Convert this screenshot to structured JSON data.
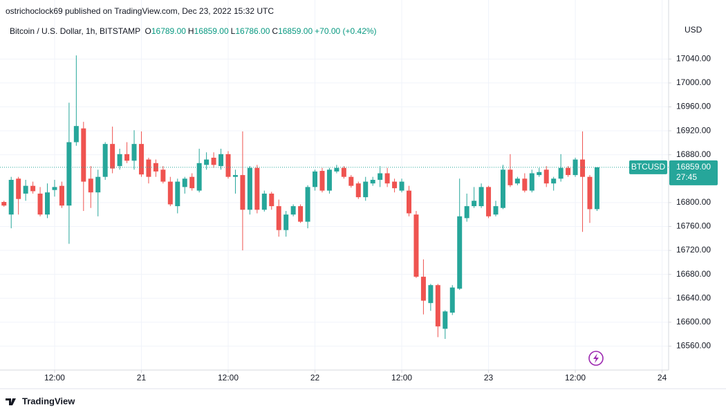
{
  "chart_data": {
    "type": "candlestick",
    "published": "ostrichoclock69 published on TradingView.com, Dec 23, 2022 15:32 UTC",
    "title": "Bitcoin / U.S. Dollar, 1h, BITSTAMP",
    "ohlc_legend": [
      {
        "label": "O",
        "value": "16789.00"
      },
      {
        "label": "H",
        "value": "16859.00"
      },
      {
        "label": "L",
        "value": "16786.00"
      },
      {
        "label": "C",
        "value": "16859.00"
      }
    ],
    "change": "+70.00 (+0.42%)",
    "currency": "USD",
    "symbol_label": "BTCUSD",
    "last_price_label": "16859.00",
    "countdown": "27:45",
    "brand": "TradingView",
    "up_color": "#26a69a",
    "down_color": "#ef5350",
    "grid": true,
    "categories": [
      null,
      null,
      null,
      null,
      null,
      null,
      null,
      null,
      null,
      null,
      null,
      null,
      null,
      null,
      null,
      null,
      null,
      null,
      null,
      null,
      null,
      null,
      null,
      null,
      null,
      null,
      null,
      null,
      null,
      null,
      null,
      null,
      null,
      null,
      null,
      null,
      null,
      null,
      null,
      null,
      null,
      null,
      null,
      null,
      null,
      null,
      null,
      null,
      null,
      null,
      null,
      null,
      null,
      null,
      null,
      null,
      null,
      null,
      null,
      null,
      null,
      null,
      null,
      null,
      null,
      null,
      null,
      null,
      null,
      null,
      null,
      null,
      null,
      null,
      null,
      null,
      null,
      null,
      null,
      null,
      null,
      null,
      null
    ],
    "open": [
      16801,
      16780,
      16840,
      16815,
      16828,
      16815,
      16780,
      16821,
      16828,
      16795,
      16901,
      16924,
      16840,
      16817,
      16843,
      16898,
      16861,
      16881,
      16870,
      16898,
      16872,
      16866,
      16855,
      16835,
      16794,
      16826,
      16843,
      16820,
      16863,
      16875,
      16861,
      16881,
      16843,
      16846,
      16788,
      16858,
      16788,
      16815,
      16794,
      16754,
      16780,
      16794,
      16768,
      16826,
      16853,
      16820,
      16852,
      16858,
      16843,
      16832,
      16809,
      16832,
      16838,
      16849,
      16835,
      16820,
      16820,
      16780,
      16676,
      16632,
      16662,
      16589,
      16616,
      16656,
      16774,
      16794,
      16794,
      16826,
      16780,
      16791,
      16855,
      16832,
      16840,
      16820,
      16846,
      16855,
      16832,
      16840,
      16858,
      16846,
      16872,
      16843,
      16789
    ],
    "high": [
      16803,
      16843,
      16843,
      16838,
      16835,
      16826,
      16832,
      16838,
      16835,
      16967,
      17046,
      16935,
      16861,
      16855,
      16901,
      16927,
      16890,
      16901,
      16921,
      16919,
      16875,
      16872,
      16861,
      16843,
      16840,
      16843,
      16849,
      16890,
      16884,
      16884,
      16890,
      16886,
      16855,
      16919,
      16861,
      16863,
      16820,
      16818,
      16805,
      16786,
      16797,
      16797,
      16829,
      16855,
      16858,
      16858,
      16863,
      16861,
      16846,
      16835,
      16843,
      16843,
      16861,
      16858,
      16840,
      16840,
      16828,
      16786,
      16705,
      16664,
      16664,
      16620,
      16662,
      16840,
      16815,
      16826,
      16832,
      16828,
      16803,
      16863,
      16881,
      16843,
      16849,
      16855,
      16858,
      16861,
      16843,
      16881,
      16861,
      16875,
      16919,
      16846,
      16859
    ],
    "low": [
      16793,
      16757,
      16780,
      16803,
      16815,
      16777,
      16774,
      16810,
      16791,
      16731,
      16895,
      16786,
      16791,
      16777,
      16838,
      16849,
      16855,
      16866,
      16855,
      16843,
      16832,
      16843,
      16832,
      16794,
      16782,
      16815,
      16820,
      16817,
      16855,
      16858,
      16855,
      16840,
      16815,
      16720,
      16780,
      16782,
      16785,
      16788,
      16743,
      16743,
      16777,
      16766,
      16757,
      16820,
      16817,
      16815,
      16849,
      16840,
      16825,
      16806,
      16803,
      16828,
      16826,
      16826,
      16817,
      16817,
      16777,
      16674,
      16613,
      16619,
      16575,
      16572,
      16612,
      16654,
      16768,
      16791,
      16791,
      16774,
      16777,
      16789,
      16826,
      16829,
      16817,
      16817,
      16843,
      16826,
      16820,
      16835,
      16843,
      16843,
      16751,
      16766,
      16786
    ],
    "close": [
      16795,
      16838,
      16806,
      16828,
      16819,
      16780,
      16817,
      16826,
      16795,
      16901,
      16928,
      16835,
      16817,
      16843,
      16898,
      16857,
      16881,
      16870,
      16898,
      16847,
      16843,
      16852,
      16835,
      16797,
      16835,
      16840,
      16824,
      16866,
      16872,
      16863,
      16881,
      16843,
      16846,
      16788,
      16858,
      16788,
      16815,
      16794,
      16754,
      16780,
      16794,
      16768,
      16826,
      16852,
      16820,
      16855,
      16858,
      16843,
      16828,
      16809,
      16835,
      16838,
      16849,
      16832,
      16824,
      16835,
      16782,
      16676,
      16636,
      16662,
      16593,
      16618,
      16658,
      16777,
      16794,
      16803,
      16826,
      16777,
      16794,
      16855,
      16829,
      16840,
      16820,
      16849,
      16851,
      16832,
      16840,
      16858,
      16846,
      16872,
      16843,
      16789,
      16859
    ],
    "xlim": [
      -0.55,
      91.9
    ],
    "xticks": [
      {
        "value": 7,
        "label": "12:00"
      },
      {
        "value": 19,
        "label": "21"
      },
      {
        "value": 31,
        "label": "12:00"
      },
      {
        "value": 43,
        "label": "22"
      },
      {
        "value": 55,
        "label": "12:00"
      },
      {
        "value": 67,
        "label": "23"
      },
      {
        "value": 79,
        "label": "12:00"
      },
      {
        "value": 91,
        "label": "24"
      }
    ],
    "ylim": [
      16520,
      17104
    ],
    "yticks": [
      {
        "value": 16560,
        "label": "16560.00"
      },
      {
        "value": 16600,
        "label": "16600.00"
      },
      {
        "value": 16640,
        "label": "16640.00"
      },
      {
        "value": 16680,
        "label": "16680.00"
      },
      {
        "value": 16720,
        "label": "16720.00"
      },
      {
        "value": 16760,
        "label": "16760.00"
      },
      {
        "value": 16800,
        "label": "16800.00"
      },
      {
        "value": 16880,
        "label": "16880.00"
      },
      {
        "value": 16920,
        "label": "16920.00"
      },
      {
        "value": 16960,
        "label": "16960.00"
      },
      {
        "value": 17000,
        "label": "17000.00"
      },
      {
        "value": 17040,
        "label": "17040.00"
      }
    ]
  }
}
